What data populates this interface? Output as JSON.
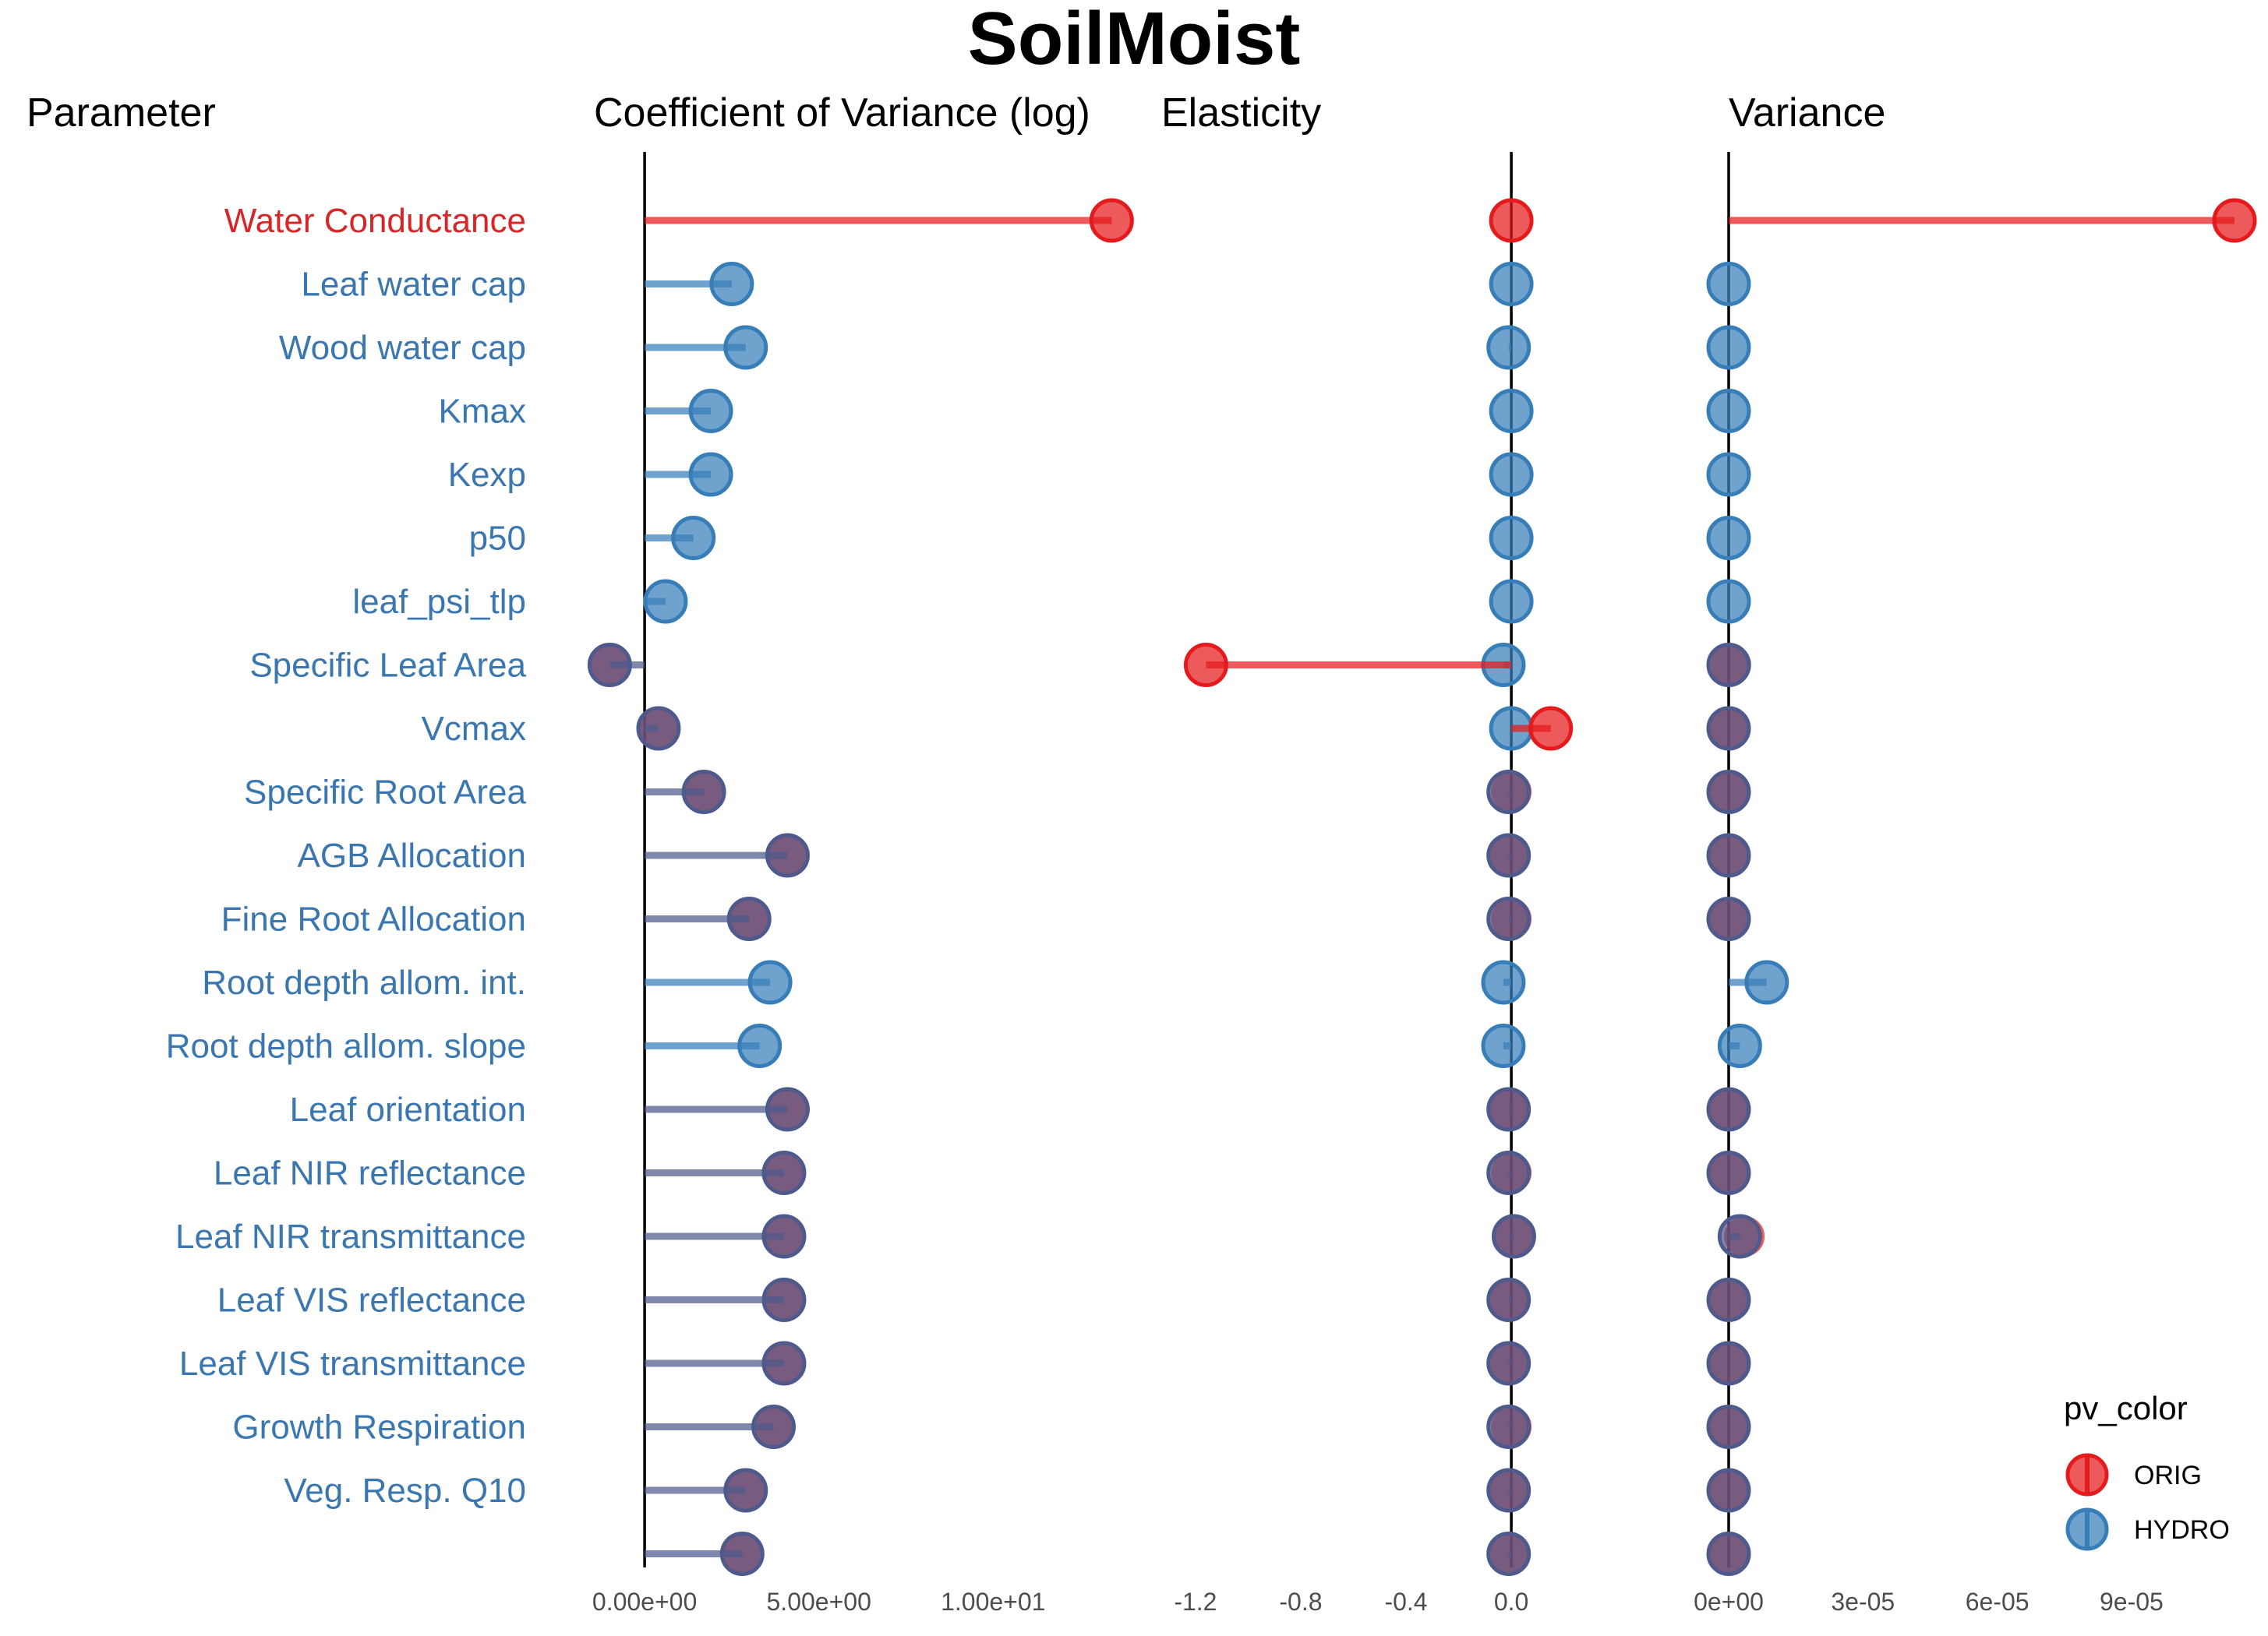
{
  "chart_data": {
    "type": "scatter",
    "title": "SoilMoist",
    "headers": {
      "parameter": "Parameter",
      "cv": "Coefficient of Variance (log)",
      "elasticity": "Elasticity",
      "variance": "Variance"
    },
    "parameters": [
      {
        "name": "Water Conductance",
        "color": "ORIG"
      },
      {
        "name": "Leaf water cap",
        "color": "HYDRO"
      },
      {
        "name": "Wood water cap",
        "color": "HYDRO"
      },
      {
        "name": "Kmax",
        "color": "HYDRO"
      },
      {
        "name": "Kexp",
        "color": "HYDRO"
      },
      {
        "name": "p50",
        "color": "HYDRO"
      },
      {
        "name": "leaf_psi_tlp",
        "color": "HYDRO"
      },
      {
        "name": "Specific Leaf Area",
        "color": "HYDRO"
      },
      {
        "name": "Vcmax",
        "color": "HYDRO"
      },
      {
        "name": "Specific Root Area",
        "color": "HYDRO"
      },
      {
        "name": "AGB Allocation",
        "color": "HYDRO"
      },
      {
        "name": "Fine Root Allocation",
        "color": "HYDRO"
      },
      {
        "name": "Root depth allom. int.",
        "color": "HYDRO"
      },
      {
        "name": "Root depth allom. slope",
        "color": "HYDRO"
      },
      {
        "name": "Leaf orientation",
        "color": "HYDRO"
      },
      {
        "name": "Leaf NIR reflectance",
        "color": "HYDRO"
      },
      {
        "name": "Leaf NIR transmittance",
        "color": "HYDRO"
      },
      {
        "name": "Leaf VIS reflectance",
        "color": "HYDRO"
      },
      {
        "name": "Leaf VIS transmittance",
        "color": "HYDRO"
      },
      {
        "name": "Growth Respiration",
        "color": "HYDRO"
      },
      {
        "name": "Veg. Resp. Q10",
        "color": "HYDRO"
      },
      {
        "name": "",
        "color": "HYDRO"
      }
    ],
    "series": [
      {
        "name": "ORIG",
        "cv": [
          13.4,
          null,
          null,
          null,
          null,
          null,
          null,
          -1.0,
          0.4,
          1.7,
          4.1,
          3.0,
          null,
          null,
          4.1,
          4.0,
          4.0,
          4.0,
          4.0,
          3.7,
          2.9,
          2.8
        ],
        "elasticity": [
          0.0,
          null,
          null,
          null,
          null,
          null,
          null,
          -1.16,
          0.15,
          0.0,
          -0.01,
          0.0,
          null,
          null,
          -0.01,
          0.0,
          0.01,
          -0.01,
          -0.01,
          0.0,
          -0.01,
          -0.01
        ],
        "variance": [
          0.000113,
          null,
          null,
          null,
          null,
          null,
          null,
          5e-07,
          2e-07,
          0.0,
          0.0,
          0.0,
          null,
          null,
          0.0,
          1e-07,
          3.5e-06,
          0.0,
          0.0,
          0.0,
          0.0,
          0.0
        ]
      },
      {
        "name": "HYDRO",
        "cv": [
          null,
          2.5,
          2.9,
          1.9,
          1.9,
          1.4,
          0.6,
          -1.0,
          0.4,
          1.7,
          4.1,
          3.0,
          3.6,
          3.3,
          4.1,
          4.0,
          4.0,
          4.0,
          4.0,
          3.7,
          2.9,
          2.8
        ],
        "elasticity": [
          null,
          0.0,
          -0.01,
          0.0,
          0.0,
          0.0,
          0.0,
          -0.03,
          0.0,
          -0.01,
          -0.01,
          -0.01,
          -0.03,
          -0.03,
          -0.01,
          -0.01,
          0.01,
          -0.01,
          -0.01,
          -0.01,
          -0.01,
          -0.01
        ],
        "variance": [
          null,
          0.0,
          0.0,
          0.0,
          0.0,
          0.0,
          0.0,
          0.0,
          0.0,
          0.0,
          0.0,
          0.0,
          8.5e-06,
          2.5e-06,
          0.0,
          0.0,
          2.5e-06,
          0.0,
          0.0,
          0.0,
          0.0,
          0.0
        ]
      }
    ],
    "axes": {
      "cv": {
        "xlim": [
          -1.5,
          14.6
        ],
        "ticks": [
          0,
          5,
          10
        ],
        "tick_labels": [
          "0.00e+00",
          "5.00e+00",
          "1.00e+01"
        ]
      },
      "elasticity": {
        "xlim": [
          -1.33,
          0.21
        ],
        "ticks": [
          -1.2,
          -0.8,
          -0.4,
          0.0
        ],
        "tick_labels": [
          "-1.2",
          "-0.8",
          "-0.4",
          "0.0"
        ]
      },
      "variance": {
        "xlim": [
          0,
          0.000117
        ],
        "ticks": [
          0,
          3e-05,
          6e-05,
          9e-05
        ],
        "tick_labels": [
          "0e+00",
          "3e-05",
          "6e-05",
          "9e-05"
        ]
      }
    },
    "legend": {
      "title": "pv_color",
      "entries": [
        "ORIG",
        "HYDRO"
      ],
      "position": "bottom-right"
    },
    "colors": {
      "ORIG": "#e41a1c",
      "HYDRO": "#377eb8",
      "overlap": "#4e5a8c",
      "label_orig": "#d62728",
      "label_hydro": "#3a76b0"
    },
    "grid": false
  }
}
